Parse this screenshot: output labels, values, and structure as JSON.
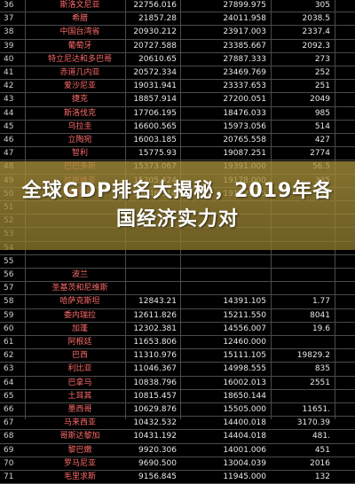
{
  "overlay_title": "全球GDP排名大揭秘，2019年各国经济实力对",
  "rows": [
    {
      "rank": "36",
      "name": "斯洛文尼亚",
      "v1": "22756.016",
      "v2": "27899.975",
      "v3": "305",
      "red": ""
    },
    {
      "rank": "37",
      "name": "希腊",
      "v1": "21857.28",
      "v2": "24011.958",
      "v3": "2038.5",
      "red": ""
    },
    {
      "rank": "38",
      "name": "中国台湾省",
      "v1": "20930.212",
      "v2": "23917.003",
      "v3": "2337.4",
      "red": ""
    },
    {
      "rank": "39",
      "name": "葡萄牙",
      "v1": "20727.588",
      "v2": "23385.667",
      "v3": "2092.3",
      "red": ""
    },
    {
      "rank": "40",
      "name": "特立尼达和多巴哥",
      "v1": "20610.65",
      "v2": "27887.333",
      "v3": "273",
      "red": ""
    },
    {
      "rank": "41",
      "name": "赤道几内亚",
      "v1": "20572.334",
      "v2": "23469.769",
      "v3": "252",
      "red": ""
    },
    {
      "rank": "42",
      "name": "爱沙尼亚",
      "v1": "19031.941",
      "v2": "23337.653",
      "v3": "251",
      "red": ""
    },
    {
      "rank": "43",
      "name": "捷克",
      "v1": "18857.914",
      "v2": "27200.051",
      "v3": "2049",
      "red": ""
    },
    {
      "rank": "44",
      "name": "斯洛伐克",
      "v1": "17706.195",
      "v2": "18476.033",
      "v3": "985",
      "red": ""
    },
    {
      "rank": "45",
      "name": "乌拉圭",
      "v1": "16600.565",
      "v2": "15973.056",
      "v3": "514",
      "red": ""
    },
    {
      "rank": "46",
      "name": "立陶宛",
      "v1": "16003.185",
      "v2": "20765.558",
      "v3": "427",
      "red": ""
    },
    {
      "rank": "47",
      "name": "智利",
      "v1": "15775.93",
      "v2": "19087.251",
      "v3": "2774",
      "red": ""
    },
    {
      "rank": "48",
      "name": "巴巴多斯",
      "v1": "15373.067",
      "v2": "19391.000",
      "v3": "56.5",
      "red": ""
    },
    {
      "rank": "49",
      "name": "拉脱维亚",
      "v1": "15205.424",
      "v2": "19178.000",
      "v3": "335",
      "red": ""
    },
    {
      "rank": "50",
      "name": "塞舌尔",
      "v1": "15046.314",
      "v2": "19192.675",
      "v3": "16",
      "red": ""
    },
    {
      "rank": "51",
      "name": "",
      "v1": "",
      "v2": "",
      "v3": "",
      "red": ""
    },
    {
      "rank": "52",
      "name": "",
      "v1": "",
      "v2": "",
      "v3": "",
      "red": ""
    },
    {
      "rank": "53",
      "name": "",
      "v1": "",
      "v2": "",
      "v3": "",
      "red": ""
    },
    {
      "rank": "54",
      "name": "",
      "v1": "",
      "v2": "",
      "v3": "",
      "red": ""
    },
    {
      "rank": "55",
      "name": "",
      "v1": "",
      "v2": "",
      "v3": "",
      "red": ""
    },
    {
      "rank": "56",
      "name": "波兰",
      "v1": "",
      "v2": "",
      "v3": "",
      "red": ""
    },
    {
      "rank": "57",
      "name": "圣基茨和尼维斯",
      "v1": "",
      "v2": "",
      "v3": "",
      "red": ""
    },
    {
      "rank": "58",
      "name": "哈萨克斯坦",
      "v1": "12843.21",
      "v2": "14391.105",
      "v3": "1.77",
      "red": ""
    },
    {
      "rank": "59",
      "name": "委内瑞拉",
      "v1": "12611.826",
      "v2": "15211.550",
      "v3": "8041",
      "red": ""
    },
    {
      "rank": "60",
      "name": "加蓬",
      "v1": "12302.381",
      "v2": "14556.007",
      "v3": "19.6",
      "red": ""
    },
    {
      "rank": "61",
      "name": "阿根廷",
      "v1": "11653.806",
      "v2": "12460.000",
      "v3": "",
      "red": ""
    },
    {
      "rank": "62",
      "name": "巴西",
      "v1": "11310.976",
      "v2": "15111.105",
      "v3": "19829.2",
      "red": ""
    },
    {
      "rank": "63",
      "name": "利比亚",
      "v1": "11046.367",
      "v2": "14998.555",
      "v3": "835",
      "red": ""
    },
    {
      "rank": "64",
      "name": "巴拿马",
      "v1": "10838.796",
      "v2": "16002.013",
      "v3": "2551",
      "red": ""
    },
    {
      "rank": "65",
      "name": "土耳其",
      "v1": "10815.457",
      "v2": "18650.144",
      "v3": "",
      "red": ""
    },
    {
      "rank": "66",
      "name": "墨西哥",
      "v1": "10629.876",
      "v2": "15505.000",
      "v3": "11651.",
      "red": ""
    },
    {
      "rank": "67",
      "name": "马来西亚",
      "v1": "10432.532",
      "v2": "14400.018",
      "v3": "3170.39",
      "red": ""
    },
    {
      "rank": "68",
      "name": "哥斯达黎加",
      "v1": "10431.192",
      "v2": "14404.018",
      "v3": "481.",
      "red": ""
    },
    {
      "rank": "69",
      "name": "黎巴嫩",
      "v1": "9920.306",
      "v2": "14001.006",
      "v3": "451",
      "red": ""
    },
    {
      "rank": "70",
      "name": "罗马尼亚",
      "v1": "9690.500",
      "v2": "13004.039",
      "v3": "2016",
      "red": ""
    },
    {
      "rank": "71",
      "name": "毛里求斯",
      "v1": "9156.845",
      "v2": "11945.000",
      "v3": "132",
      "red": ""
    }
  ]
}
